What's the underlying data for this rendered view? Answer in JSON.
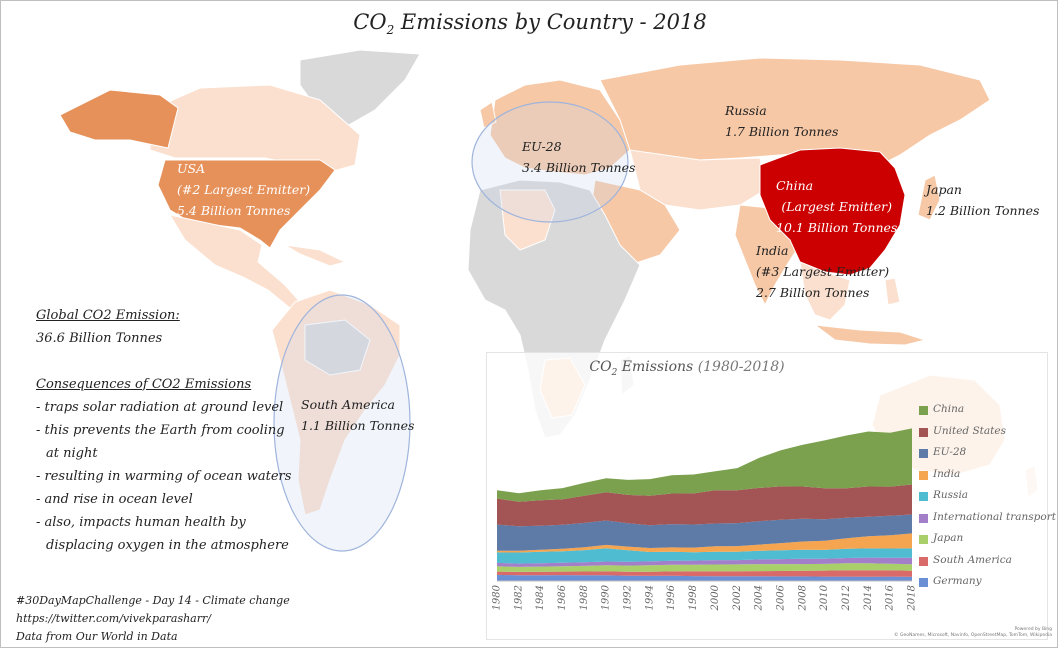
{
  "title": {
    "pre": "CO",
    "sub": "2",
    "post": " Emissions by Country - 2018"
  },
  "map_labels": {
    "russia": [
      "Russia",
      "1.7 Billion Tonnes"
    ],
    "eu28": [
      "EU-28",
      "3.4 Billion Tonnes"
    ],
    "usa": [
      "USA",
      "(#2 Largest Emitter)",
      "5.4 Billion Tonnes"
    ],
    "china": [
      "China",
      "(Largest Emitter)",
      "10.1 Billion Tonnes"
    ],
    "japan": [
      "Japan",
      "1.2 Billion Tonnes"
    ],
    "india": [
      "India",
      "(#3 Largest Emitter)",
      "2.7 Billion Tonnes"
    ],
    "south_america": [
      "South America",
      "1.1 Billion Tonnes"
    ]
  },
  "global": {
    "heading": "Global CO2 Emission:",
    "value": "36.6 Billion Tonnes"
  },
  "consequences": {
    "heading": "Consequences of CO2 Emissions",
    "items": [
      "- traps solar radiation at ground level",
      "- this prevents the Earth from cooling",
      "at night",
      "- resulting in warming of ocean waters",
      "- and rise in ocean level",
      "- also, impacts human health by",
      "displacing oxygen in the atmosphere"
    ]
  },
  "footer": [
    "#30DayMapChallenge - Day 14 - Climate change",
    "https://twitter.com/vivekparasharr/",
    "Data from Our World in Data"
  ],
  "attribution": [
    "Powered by Bing",
    "© GeoNames, Microsoft, Navinfo, OpenStreetMap, TomTom, Wikipedia"
  ],
  "colors": {
    "ocean": "#ffffff",
    "land_nodata": "#d9d9d9",
    "land_light": "#fbe0cf",
    "land_medium": "#f6c8a6",
    "usa": "#e6915a",
    "china": "#cc0000",
    "highlight_ellipse": "#9fb4dc"
  },
  "chart_data": {
    "type": "area",
    "title": {
      "pre": "CO",
      "sub": "2",
      "post": " Emissions ",
      "range": "(1980-2018)"
    },
    "x": [
      1980,
      1982,
      1984,
      1986,
      1988,
      1990,
      1992,
      1994,
      1996,
      1998,
      2000,
      2002,
      2004,
      2006,
      2008,
      2010,
      2012,
      2014,
      2016,
      2018
    ],
    "stacked": true,
    "series": [
      {
        "name": "Germany",
        "color": "#6a8fd4",
        "values": [
          1.1,
          1.05,
          1.05,
          1.07,
          1.05,
          1.05,
          0.95,
          0.92,
          0.93,
          0.89,
          0.87,
          0.87,
          0.86,
          0.83,
          0.82,
          0.8,
          0.8,
          0.78,
          0.8,
          0.76
        ]
      },
      {
        "name": "South America",
        "color": "#d96a6a",
        "values": [
          0.6,
          0.58,
          0.6,
          0.63,
          0.66,
          0.68,
          0.7,
          0.75,
          0.8,
          0.85,
          0.88,
          0.88,
          0.92,
          0.97,
          1.02,
          1.08,
          1.12,
          1.15,
          1.12,
          1.1
        ]
      },
      {
        "name": "Japan",
        "color": "#a8cf6a",
        "values": [
          0.95,
          0.9,
          0.95,
          0.95,
          1.0,
          1.1,
          1.12,
          1.15,
          1.2,
          1.18,
          1.22,
          1.23,
          1.26,
          1.25,
          1.2,
          1.2,
          1.27,
          1.28,
          1.2,
          1.16
        ]
      },
      {
        "name": "International transport",
        "color": "#a37fc9",
        "values": [
          0.6,
          0.6,
          0.6,
          0.62,
          0.65,
          0.68,
          0.68,
          0.7,
          0.72,
          0.75,
          0.8,
          0.78,
          0.85,
          0.9,
          0.95,
          0.92,
          0.95,
          1.0,
          1.08,
          1.15
        ]
      },
      {
        "name": "Russia",
        "color": "#4fbcd2",
        "values": [
          1.9,
          2.0,
          2.05,
          2.1,
          2.2,
          2.4,
          2.1,
          1.7,
          1.6,
          1.5,
          1.5,
          1.5,
          1.55,
          1.6,
          1.65,
          1.6,
          1.65,
          1.65,
          1.65,
          1.7
        ]
      },
      {
        "name": "India",
        "color": "#f5a550",
        "values": [
          0.3,
          0.33,
          0.38,
          0.45,
          0.5,
          0.58,
          0.65,
          0.72,
          0.8,
          0.85,
          0.98,
          1.02,
          1.12,
          1.28,
          1.47,
          1.65,
          1.9,
          2.2,
          2.4,
          2.7
        ]
      },
      {
        "name": "EU-28",
        "color": "#5e7aa6",
        "values": [
          4.7,
          4.4,
          4.3,
          4.3,
          4.4,
          4.4,
          4.2,
          4.1,
          4.2,
          4.15,
          4.1,
          4.15,
          4.2,
          4.2,
          4.1,
          3.85,
          3.7,
          3.5,
          3.5,
          3.4
        ]
      },
      {
        "name": "United States",
        "color": "#a35555",
        "values": [
          4.7,
          4.4,
          4.6,
          4.6,
          4.9,
          5.1,
          5.1,
          5.3,
          5.5,
          5.6,
          6.0,
          5.9,
          6.0,
          6.0,
          5.8,
          5.6,
          5.3,
          5.45,
          5.25,
          5.4
        ]
      },
      {
        "name": "China",
        "color": "#7ba14e",
        "values": [
          1.5,
          1.55,
          1.8,
          2.0,
          2.3,
          2.5,
          2.7,
          3.0,
          3.3,
          3.4,
          3.4,
          4.0,
          5.4,
          6.5,
          7.5,
          8.6,
          9.5,
          9.9,
          9.7,
          10.1
        ]
      }
    ],
    "legend_order": [
      "China",
      "United States",
      "EU-28",
      "India",
      "Russia",
      "International transport",
      "Japan",
      "South America",
      "Germany"
    ],
    "legend_position": "right",
    "xlabel": "",
    "ylabel": "",
    "ylim": [
      0,
      36
    ],
    "grid": false
  }
}
